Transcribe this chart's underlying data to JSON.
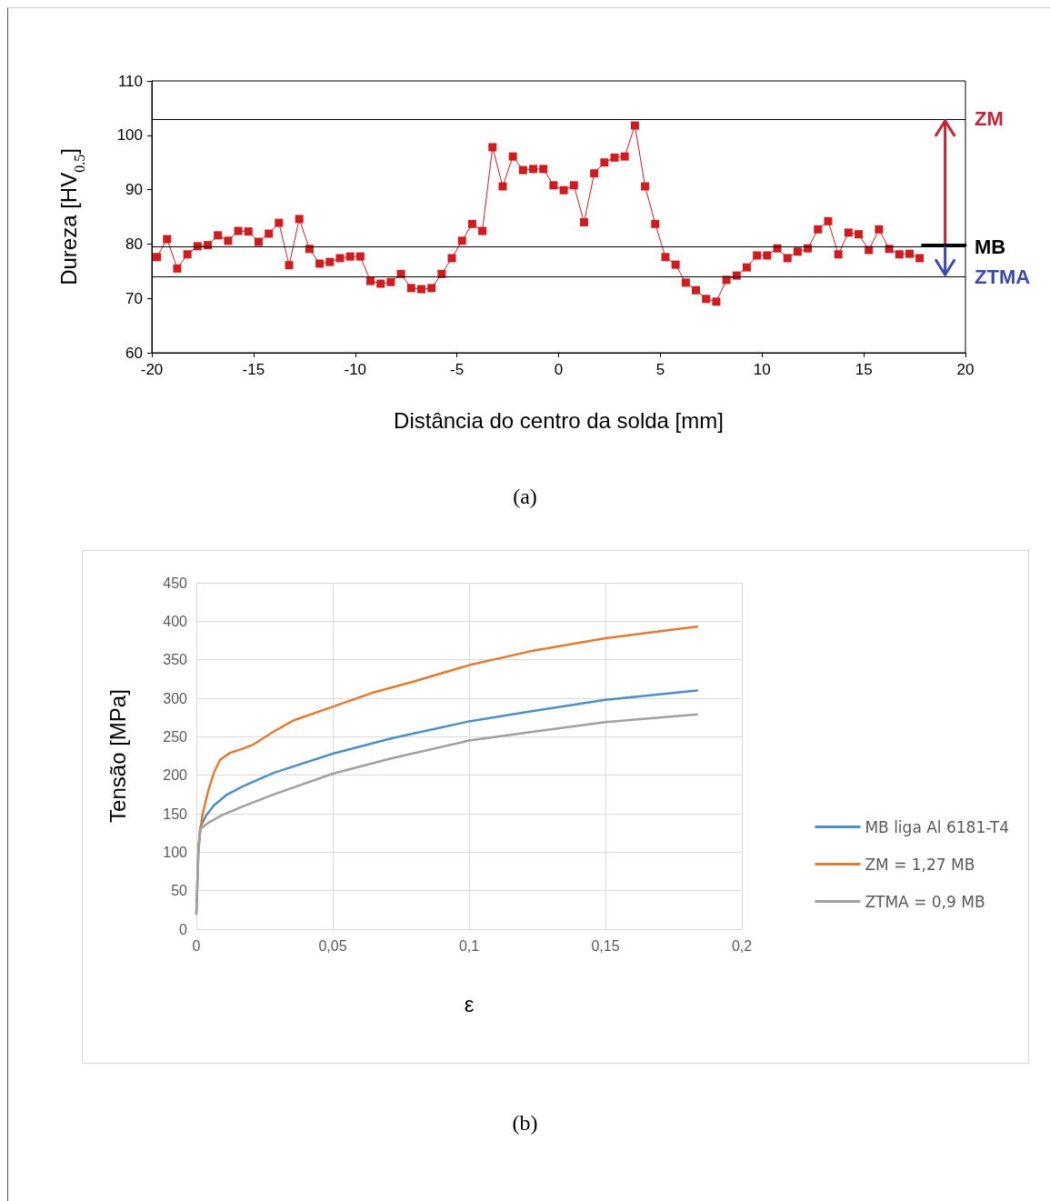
{
  "chart_data": [
    {
      "type": "line",
      "xlabel": "Distância do centro da solda [mm]",
      "ylabel": "Dureza [HV$_{0.5}$]",
      "annotations": [
        "(a)"
      ],
      "x": [
        -19.75,
        -19.25,
        -18.75,
        -18.25,
        -17.75,
        -17.25,
        -16.75,
        -16.25,
        -15.75,
        -15.25,
        -14.75,
        -14.25,
        -13.75,
        -13.25,
        -12.75,
        -12.25,
        -11.75,
        -11.25,
        -10.75,
        -10.25,
        -9.75,
        -9.25,
        -8.75,
        -8.25,
        -7.75,
        -7.25,
        -6.75,
        -6.25,
        -5.75,
        -5.25,
        -4.75,
        -4.25,
        -3.75,
        -3.25,
        -2.75,
        -2.25,
        -1.75,
        -1.25,
        -0.75,
        -0.25,
        0.25,
        0.75,
        1.25,
        1.75,
        2.25,
        2.75,
        3.25,
        3.75,
        4.25,
        4.75,
        5.25,
        5.75,
        6.25,
        6.75,
        7.25,
        7.75,
        8.25,
        8.75,
        9.25,
        9.75,
        10.25,
        10.75,
        11.25,
        11.75,
        12.25,
        12.75,
        13.25,
        13.75,
        14.25,
        14.75,
        15.25,
        15.75,
        16.25,
        16.75,
        17.25,
        17.75
      ],
      "series": [
        {
          "color": "#d01c1f",
          "values": [
            77.6,
            80.9,
            75.5,
            78.1,
            79.6,
            79.8,
            81.6,
            80.6,
            82.4,
            82.3,
            80.4,
            81.9,
            83.9,
            76.1,
            84.6,
            79.1,
            76.4,
            76.7,
            77.4,
            77.7,
            77.7,
            73.2,
            72.7,
            73.0,
            74.5,
            71.9,
            71.7,
            71.9,
            74.5,
            77.4,
            80.6,
            83.7,
            82.4,
            97.8,
            90.6,
            96.1,
            93.6,
            93.8,
            93.8,
            90.8,
            89.9,
            90.8,
            84.0,
            93.0,
            95.0,
            95.9,
            96.1,
            101.8,
            90.6,
            83.7,
            77.6,
            76.2,
            72.9,
            71.5,
            69.9,
            69.4,
            73.4,
            74.2,
            75.7,
            77.9,
            77.9,
            79.2,
            77.4,
            78.6,
            79.2,
            82.7,
            84.2,
            78.1,
            82.1,
            81.8,
            78.9,
            82.7,
            79.1,
            78.1,
            78.2,
            77.4
          ]
        }
      ],
      "xlim": [
        -20,
        20
      ],
      "xticks": [
        -20,
        -15,
        -10,
        -5,
        0,
        5,
        10,
        15,
        20
      ],
      "ylim": [
        60,
        110
      ],
      "yticks": [
        60,
        70,
        80,
        90,
        100,
        110
      ],
      "ref_lines": [
        {
          "axis": "y",
          "value": 103,
          "label": "ZM",
          "color": "#000000"
        },
        {
          "axis": "y",
          "value": 79.5,
          "label": "MB",
          "color": "#000000"
        },
        {
          "axis": "y",
          "value": 74,
          "label": "ZTMA",
          "color": "#000000"
        }
      ],
      "grid": false,
      "legend": false,
      "marker": "square",
      "line_style": "solid"
    },
    {
      "type": "line",
      "xlabel": "ε",
      "ylabel": "Tensão [MPa]",
      "annotations": [
        "(b)"
      ],
      "series": [
        {
          "name": "MB liga Al 6181-T4",
          "color": "#4f8fc3",
          "x": [
            0,
            0.0007,
            0.0014,
            0.0036,
            0.0065,
            0.0109,
            0.0167,
            0.0283,
            0.05,
            0.0717,
            0.1,
            0.1225,
            0.15,
            0.1836
          ],
          "values": [
            20,
            97,
            132,
            148,
            161,
            174,
            185,
            203,
            228,
            248,
            270,
            283,
            298,
            310
          ]
        },
        {
          "name": "ZM = 1,27 MB",
          "color": "#e07b30",
          "x": [
            0.0007,
            0.0022,
            0.0043,
            0.0065,
            0.0087,
            0.0123,
            0.0167,
            0.021,
            0.028,
            0.0355,
            0.05,
            0.0645,
            0.079,
            0.1,
            0.1225,
            0.15,
            0.1836
          ],
          "values": [
            107,
            148,
            179,
            204,
            220,
            229,
            234,
            240,
            256,
            271,
            289,
            307,
            321,
            343,
            361,
            378,
            393
          ]
        },
        {
          "name": "ZTMA = 0,9 MB",
          "color": "#a0a0a0",
          "x": [
            0,
            0.0007,
            0.0014,
            0.0043,
            0.0094,
            0.0167,
            0.0283,
            0.05,
            0.0717,
            0.1,
            0.1225,
            0.15,
            0.1836
          ],
          "values": [
            20,
            97,
            130,
            138,
            148,
            159,
            175,
            202,
            222,
            245,
            256,
            269,
            279
          ]
        }
      ],
      "xlim": [
        0,
        0.2
      ],
      "xticks": [
        0,
        {
          "value": 0.05,
          "label": "0,05"
        },
        {
          "value": 0.1,
          "label": "0,1"
        },
        {
          "value": 0.15,
          "label": "0,15"
        },
        {
          "value": 0.2,
          "label": "0,2"
        }
      ],
      "ylim": [
        0,
        450
      ],
      "yticks": [
        0,
        50,
        100,
        150,
        200,
        250,
        300,
        350,
        400,
        450
      ],
      "grid": true,
      "legend": "right",
      "marker": "none",
      "line_style": "solid"
    }
  ]
}
